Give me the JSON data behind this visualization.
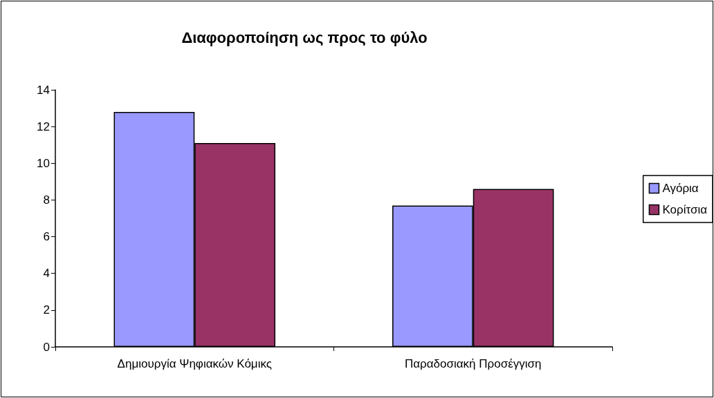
{
  "chart_data": {
    "type": "bar",
    "title": "Διαφοροποίηση ως προς το φύλο",
    "categories": [
      "Δημιουργία Ψηφιακών Κόμικς",
      "Παραδοσιακή Προσέγγιση"
    ],
    "series": [
      {
        "name": "Αγόρια",
        "color": "#9999ff",
        "values": [
          12.8,
          7.7
        ]
      },
      {
        "name": "Κορίτσια",
        "color": "#993366",
        "values": [
          11.1,
          8.6
        ]
      }
    ],
    "ylim": [
      0,
      14
    ],
    "yticks": [
      0,
      2,
      4,
      6,
      8,
      10,
      12,
      14
    ],
    "grid": false,
    "legend": "right"
  }
}
